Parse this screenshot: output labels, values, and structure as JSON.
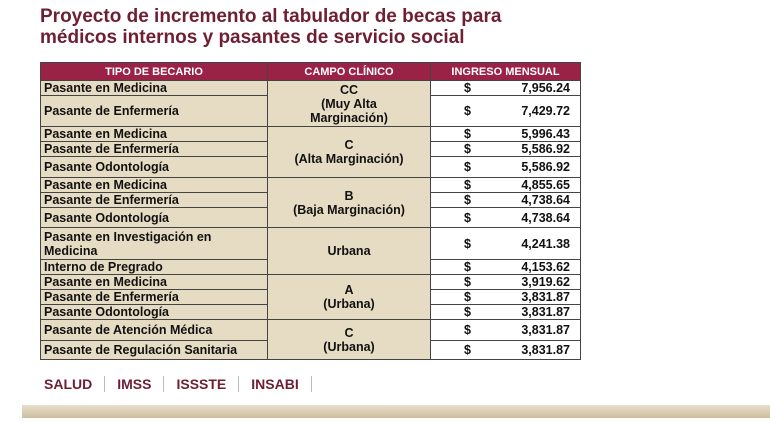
{
  "header": {
    "title": [
      "Proyecto de incremento al tabulador de becas para",
      "médicos internos y pasantes de servicio social"
    ]
  },
  "table": {
    "columns": [
      "TIPO DE BECARIO",
      "CAMPO CLÍNICO",
      "INGRESO MENSUAL"
    ],
    "groups": [
      {
        "campo": [
          "CC",
          "(Muy Alta",
          "Marginación)"
        ],
        "rows": [
          {
            "tipo": "Pasante en Medicina",
            "currency": "$",
            "amount": "7,956.24"
          },
          {
            "tipo": "Pasante de Enfermería",
            "currency": "$",
            "amount": "7,429.72"
          }
        ]
      },
      {
        "campo": [
          "C",
          "(Alta Marginación)"
        ],
        "rows": [
          {
            "tipo": "Pasante en Medicina",
            "currency": "$",
            "amount": "5,996.43"
          },
          {
            "tipo": "Pasante de Enfermería",
            "currency": "$",
            "amount": "5,586.92"
          },
          {
            "tipo": "Pasante Odontología",
            "currency": "$",
            "amount": "5,586.92"
          }
        ]
      },
      {
        "campo": [
          "B",
          "(Baja Marginación)"
        ],
        "rows": [
          {
            "tipo": "Pasante en Medicina",
            "currency": "$",
            "amount": "4,855.65"
          },
          {
            "tipo": "Pasante de Enfermería",
            "currency": "$",
            "amount": "4,738.64"
          },
          {
            "tipo": "Pasante Odontología",
            "currency": "$",
            "amount": "4,738.64"
          }
        ]
      },
      {
        "campo": [
          "Urbana"
        ],
        "rows": [
          {
            "tipo": "Pasante en Investigación en Medicina",
            "currency": "$",
            "amount": "4,241.38"
          },
          {
            "tipo": "Interno de Pregrado",
            "currency": "$",
            "amount": "4,153.62"
          }
        ]
      },
      {
        "campo": [
          "A",
          "(Urbana)"
        ],
        "rows": [
          {
            "tipo": "Pasante en Medicina",
            "currency": "$",
            "amount": "3,919.62"
          },
          {
            "tipo": "Pasante de Enfermería",
            "currency": "$",
            "amount": "3,831.87"
          },
          {
            "tipo": "Pasante Odontología",
            "currency": "$",
            "amount": "3,831.87"
          }
        ]
      },
      {
        "campo": [
          "C",
          "(Urbana)"
        ],
        "rows": [
          {
            "tipo": "Pasante de Atención Médica",
            "currency": "$",
            "amount": "3,831.87"
          },
          {
            "tipo": "Pasante de Regulación Sanitaria",
            "currency": "$",
            "amount": "3,831.87"
          }
        ]
      }
    ]
  },
  "footer": {
    "logos": [
      "SALUD",
      "IMSS",
      "ISSSTE",
      "INSABI"
    ]
  }
}
